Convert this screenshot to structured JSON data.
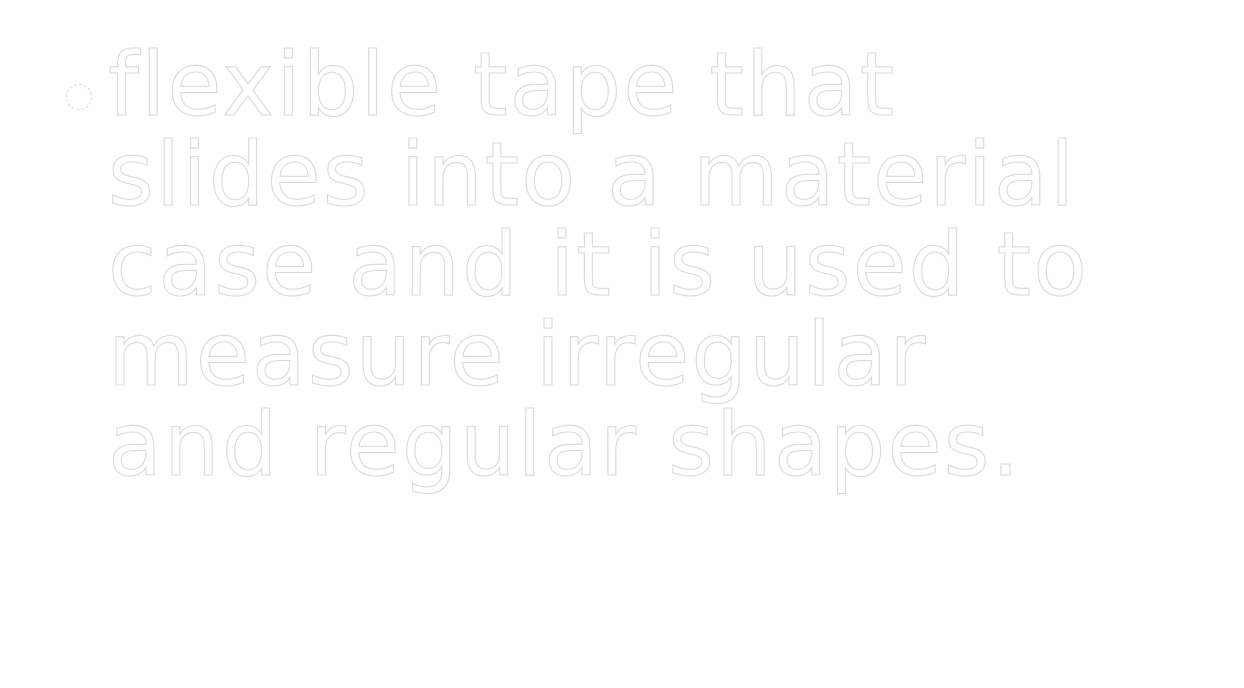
{
  "paragraph": {
    "lines": [
      "flexible tape that",
      "slides into a material",
      "case and it is used to",
      "measure irregular",
      "and regular shapes."
    ]
  },
  "colors": {
    "background": "#ffffff",
    "glyph_fill": "#ffffff",
    "glyph_outline": "#d9d9d9"
  }
}
